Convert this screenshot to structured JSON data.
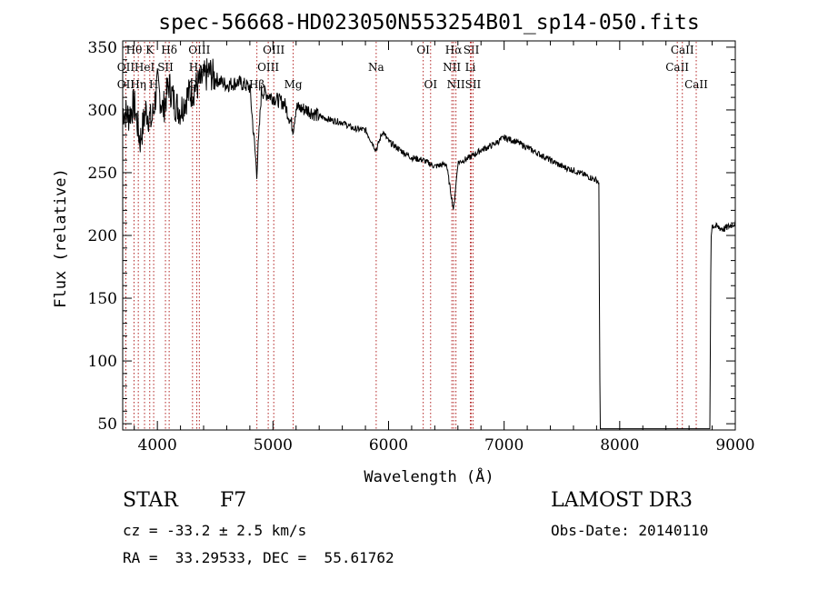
{
  "chart_data": {
    "type": "line",
    "title": "spec-56668-HD023050N553254B01_sp14-050.fits",
    "xlabel": "Wavelength (Å)",
    "ylabel": "Flux (relative)",
    "xlim": [
      3700,
      9000
    ],
    "ylim": [
      45,
      355
    ],
    "x_ticks": [
      4000,
      5000,
      6000,
      7000,
      8000,
      9000
    ],
    "y_ticks": [
      50,
      100,
      150,
      200,
      250,
      300,
      350
    ],
    "spectral_lines": [
      {
        "label": "Hθ",
        "wavelength": 3798,
        "row": 0
      },
      {
        "label": "OII",
        "wavelength": 3727,
        "row": 1
      },
      {
        "label": "OII",
        "wavelength": 3727,
        "row": 2
      },
      {
        "label": "HeI",
        "wavelength": 3889,
        "row": 1
      },
      {
        "label": "Hη",
        "wavelength": 3835,
        "row": 2
      },
      {
        "label": "K",
        "wavelength": 3934,
        "row": 0
      },
      {
        "label": "H",
        "wavelength": 3968,
        "row": 2
      },
      {
        "label": "SII",
        "wavelength": 4070,
        "row": 1
      },
      {
        "label": "Hδ",
        "wavelength": 4102,
        "row": 0
      },
      {
        "label": "G",
        "wavelength": 4304,
        "row": 2
      },
      {
        "label": "Hγ",
        "wavelength": 4341,
        "row": 1
      },
      {
        "label": "OIII",
        "wavelength": 4363,
        "row": 0
      },
      {
        "label": "Hβ",
        "wavelength": 4861,
        "row": 2
      },
      {
        "label": "OIII",
        "wavelength": 4959,
        "row": 1
      },
      {
        "label": "OIII",
        "wavelength": 5007,
        "row": 0
      },
      {
        "label": "Mg",
        "wavelength": 5175,
        "row": 2
      },
      {
        "label": "Na",
        "wavelength": 5893,
        "row": 1
      },
      {
        "label": "OI",
        "wavelength": 6300,
        "row": 0
      },
      {
        "label": "OI",
        "wavelength": 6364,
        "row": 2
      },
      {
        "label": "NII",
        "wavelength": 6548,
        "row": 1
      },
      {
        "label": "Hα",
        "wavelength": 6563,
        "row": 0
      },
      {
        "label": "NII",
        "wavelength": 6583,
        "row": 2
      },
      {
        "label": "Li",
        "wavelength": 6708,
        "row": 1
      },
      {
        "label": "SII",
        "wavelength": 6716,
        "row": 0
      },
      {
        "label": "SII",
        "wavelength": 6731,
        "row": 2
      },
      {
        "label": "CaII",
        "wavelength": 8498,
        "row": 1
      },
      {
        "label": "CaII",
        "wavelength": 8542,
        "row": 0
      },
      {
        "label": "CaII",
        "wavelength": 8662,
        "row": 2
      }
    ],
    "spectrum": {
      "wavelength": [
        3700,
        3750,
        3800,
        3850,
        3900,
        3950,
        4000,
        4050,
        4100,
        4150,
        4200,
        4250,
        4300,
        4350,
        4400,
        4450,
        4500,
        4600,
        4700,
        4800,
        4860,
        4900,
        5000,
        5100,
        5175,
        5200,
        5300,
        5400,
        5500,
        5600,
        5700,
        5800,
        5893,
        5950,
        6000,
        6100,
        6200,
        6300,
        6400,
        6500,
        6563,
        6600,
        6700,
        6800,
        6900,
        7000,
        7100,
        7200,
        7300,
        7400,
        7500,
        7600,
        7700,
        7800,
        7820,
        7830,
        7850,
        8000,
        8200,
        8400,
        8600,
        8780,
        8790,
        8800,
        8900,
        9000
      ],
      "flux": [
        300,
        295,
        305,
        275,
        300,
        290,
        320,
        300,
        320,
        305,
        300,
        310,
        315,
        320,
        325,
        330,
        325,
        320,
        322,
        318,
        250,
        315,
        310,
        305,
        285,
        302,
        300,
        295,
        292,
        290,
        285,
        284,
        268,
        283,
        275,
        268,
        262,
        260,
        255,
        257,
        220,
        258,
        262,
        268,
        272,
        278,
        275,
        270,
        265,
        260,
        255,
        252,
        248,
        244,
        242,
        45,
        44,
        44,
        44,
        45,
        45,
        45,
        200,
        208,
        205,
        210
      ]
    },
    "grid": false,
    "legend": "none"
  },
  "info": {
    "object_class": "STAR",
    "subclass": "F7",
    "survey": "LAMOST DR3",
    "redshift": "cz = -33.2 ± 2.5 km/s",
    "obs_date": "Obs-Date: 20140110",
    "coords": "RA =  33.29533, DEC =  55.61762"
  },
  "colors": {
    "spectrum": "#000000",
    "line_marker": "#b22222"
  }
}
